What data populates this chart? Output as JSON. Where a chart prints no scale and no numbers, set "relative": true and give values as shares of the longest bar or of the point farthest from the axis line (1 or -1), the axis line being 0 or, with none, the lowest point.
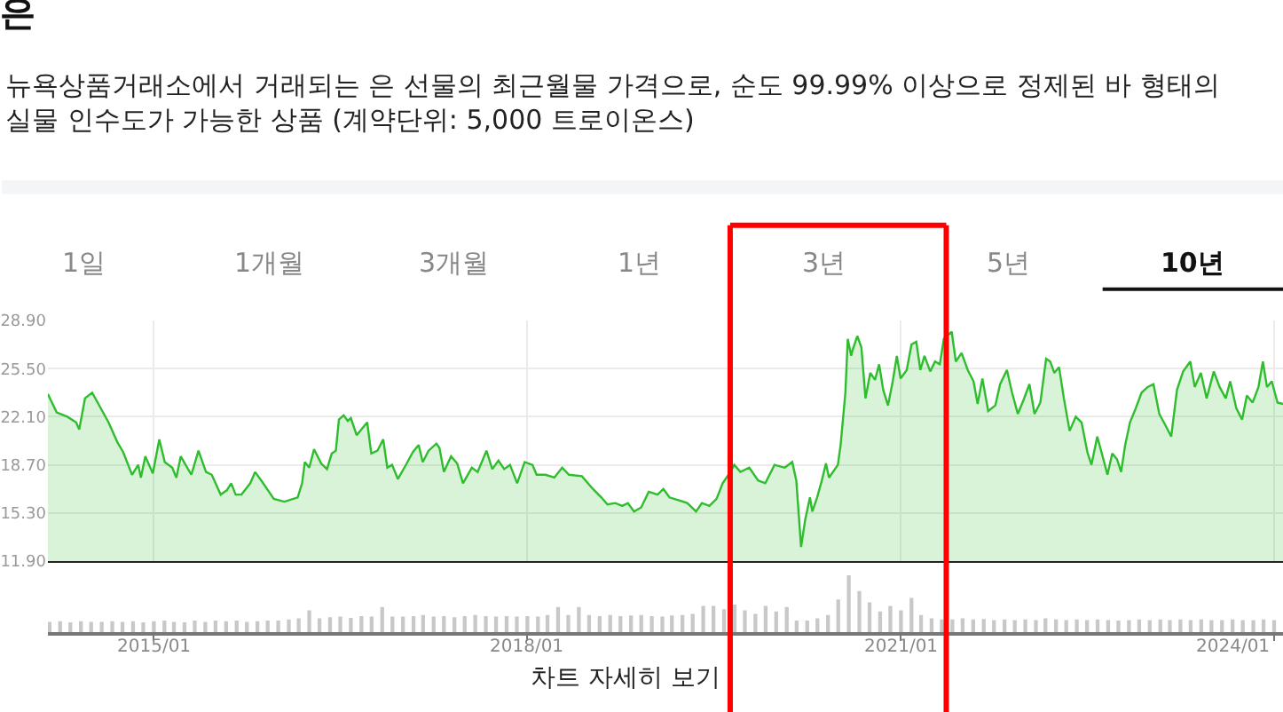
{
  "chart_data": [
    {
      "type": "area",
      "title": "은",
      "subtitle": "뉴욕상품거래소에서 거래되는 은 선물의 최근월물 가격으로, 순도 99.99% 이상으로 정제된 바 형태의 실물 인수도가 가능한 상품 (계약단위: 5,000 트로이온스)",
      "annotations": [
        "1일",
        "1개월",
        "3개월",
        "1년",
        "3년",
        "5년",
        "10년"
      ],
      "x": [
        "2014-02-24",
        "2014-03-22",
        "2014-04-22",
        "2014-05-18",
        "2014-05-27",
        "2014-06-13",
        "2014-07-04",
        "2014-08-21",
        "2014-09-16",
        "2014-10-03",
        "2014-10-29",
        "2014-11-16",
        "2014-11-24",
        "2014-12-07",
        "2014-12-29",
        "2015-01-17",
        "2015-02-02",
        "2015-02-24",
        "2015-03-08",
        "2015-03-21",
        "2015-04-21",
        "2015-05-12",
        "2015-06-03",
        "2015-06-20",
        "2015-07-16",
        "2015-08-03",
        "2015-08-16",
        "2015-08-29",
        "2015-09-15",
        "2015-10-11",
        "2015-10-25",
        "2015-11-15",
        "2015-12-02",
        "2015-12-19",
        "2016-01-19",
        "2016-02-27",
        "2016-03-11",
        "2016-03-19",
        "2016-04-01",
        "2016-04-15",
        "2016-05-06",
        "2016-05-23",
        "2016-06-06",
        "2016-06-18",
        "2016-06-27",
        "2016-07-11",
        "2016-07-23",
        "2016-08-01",
        "2016-08-18",
        "2016-09-01",
        "2016-09-18",
        "2016-09-30",
        "2016-10-18",
        "2016-11-04",
        "2016-11-16",
        "2016-11-30",
        "2016-12-17",
        "2017-01-12",
        "2017-01-30",
        "2017-02-16",
        "2017-02-28",
        "2017-03-17",
        "2017-04-09",
        "2017-04-18",
        "2017-05-01",
        "2017-05-22",
        "2017-06-09",
        "2017-06-26",
        "2017-07-22",
        "2017-08-08",
        "2017-09-03",
        "2017-09-20",
        "2017-10-08",
        "2017-10-25",
        "2017-11-11",
        "2017-12-02",
        "2017-12-24",
        "2018-01-16",
        "2018-01-28",
        "2018-02-23",
        "2018-03-21",
        "2018-04-13",
        "2018-05-03",
        "2018-06-10",
        "2018-07-12",
        "2018-08-06",
        "2018-08-24",
        "2018-09-16",
        "2018-10-06",
        "2018-10-23",
        "2018-11-10",
        "2018-12-01",
        "2018-12-23",
        "2019-01-18",
        "2019-02-04",
        "2019-02-22",
        "2019-03-20",
        "2019-04-15",
        "2019-05-11",
        "2019-05-28",
        "2019-06-19",
        "2019-07-10",
        "2019-07-28",
        "2019-08-14",
        "2019-08-31",
        "2019-09-18",
        "2019-10-14",
        "2019-11-09",
        "2019-11-30",
        "2019-12-27",
        "2020-01-26",
        "2020-02-17",
        "2020-02-29",
        "2020-03-14",
        "2020-03-26",
        "2020-04-09",
        "2020-04-16",
        "2020-04-30",
        "2020-05-14",
        "2020-05-26",
        "2020-06-04",
        "2020-06-30",
        "2020-07-08",
        "2020-07-22",
        "2020-07-29",
        "2020-08-08",
        "2020-08-12",
        "2020-08-26",
        "2020-09-07",
        "2020-09-19",
        "2020-10-03",
        "2020-10-17",
        "2020-10-29",
        "2020-11-10",
        "2020-11-24",
        "2020-12-08",
        "2020-12-20",
        "2020-12-31",
        "2021-01-18",
        "2021-02-01",
        "2021-02-15",
        "2021-02-27",
        "2021-03-11",
        "2021-03-28",
        "2021-04-11",
        "2021-04-25",
        "2021-05-07",
        "2021-05-30",
        "2021-06-11",
        "2021-06-28",
        "2021-07-16",
        "2021-08-02",
        "2021-08-14",
        "2021-08-28",
        "2021-09-14",
        "2021-10-05",
        "2021-10-19",
        "2021-11-08",
        "2021-11-23",
        "2021-12-10",
        "2021-12-27",
        "2022-01-13",
        "2022-01-28",
        "2022-02-14",
        "2022-03-03",
        "2022-03-15",
        "2022-03-27",
        "2022-04-10",
        "2022-04-24",
        "2022-05-11",
        "2022-05-29",
        "2022-06-15",
        "2022-07-02",
        "2022-07-14",
        "2022-07-31",
        "2022-08-18",
        "2022-08-30",
        "2022-09-13",
        "2022-09-27",
        "2022-10-09",
        "2022-10-21",
        "2022-11-04",
        "2022-11-21",
        "2022-12-08",
        "2022-12-26",
        "2023-01-12",
        "2023-01-29",
        "2023-02-16",
        "2023-03-05",
        "2023-03-22",
        "2023-04-09",
        "2023-04-30",
        "2023-05-13",
        "2023-05-31",
        "2023-06-17",
        "2023-07-08",
        "2023-07-25",
        "2023-08-12",
        "2023-08-25",
        "2023-09-12",
        "2023-09-29",
        "2023-10-13",
        "2023-10-30",
        "2023-11-16",
        "2023-11-29",
        "2023-12-11",
        "2023-12-25",
        "2024-01-11",
        "2024-01-27"
      ],
      "series": [
        {
          "color": "#2dbd2d",
          "values": [
            23.7,
            22.4,
            22.1,
            21.7,
            21.2,
            23.4,
            23.8,
            21.7,
            20.3,
            19.6,
            18.0,
            18.7,
            17.8,
            19.3,
            18.1,
            20.5,
            18.9,
            18.5,
            17.8,
            19.3,
            18.0,
            19.7,
            18.2,
            18.0,
            16.6,
            16.9,
            17.4,
            16.6,
            16.6,
            17.4,
            18.2,
            17.5,
            16.9,
            16.3,
            16.1,
            16.4,
            17.4,
            18.9,
            18.5,
            19.8,
            18.8,
            18.4,
            19.5,
            19.7,
            21.9,
            22.2,
            21.8,
            22.0,
            20.8,
            21.2,
            21.7,
            19.5,
            19.7,
            20.5,
            18.5,
            18.7,
            17.7,
            18.8,
            19.6,
            20.1,
            18.9,
            19.7,
            20.2,
            19.9,
            18.2,
            19.3,
            18.8,
            17.4,
            18.5,
            18.2,
            19.7,
            18.4,
            19.0,
            18.4,
            18.7,
            17.4,
            18.9,
            18.7,
            18.0,
            18.0,
            17.8,
            18.5,
            18.0,
            17.9,
            17.0,
            16.4,
            15.9,
            16.0,
            15.8,
            16.0,
            15.4,
            15.7,
            16.8,
            16.6,
            17.0,
            16.4,
            16.2,
            16.0,
            15.4,
            16.0,
            15.8,
            16.3,
            17.4,
            18.0,
            18.7,
            18.2,
            18.5,
            17.6,
            17.4,
            18.7,
            18.5,
            18.9,
            17.6,
            12.9,
            14.8,
            16.4,
            15.4,
            16.4,
            17.6,
            18.8,
            17.8,
            18.7,
            20.1,
            23.8,
            27.6,
            26.4,
            26.8,
            27.8,
            27.0,
            23.4,
            25.2,
            24.7,
            25.8,
            24.0,
            22.9,
            24.6,
            26.4,
            24.8,
            25.4,
            27.2,
            27.4,
            25.4,
            26.4,
            25.3,
            26.0,
            25.8,
            27.6,
            28.1,
            26.0,
            26.6,
            25.4,
            24.6,
            23.0,
            24.8,
            22.5,
            22.9,
            24.4,
            25.4,
            23.8,
            22.3,
            23.3,
            24.4,
            22.3,
            23.1,
            26.2,
            26.0,
            25.2,
            25.6,
            23.4,
            21.1,
            22.1,
            21.7,
            19.6,
            18.7,
            20.7,
            19.1,
            18.0,
            19.5,
            19.1,
            18.2,
            20.1,
            21.7,
            22.7,
            23.8,
            24.2,
            24.4,
            22.3,
            21.5,
            20.7,
            24.0,
            25.3,
            26.0,
            24.2,
            25.2,
            23.4,
            25.3,
            24.2,
            23.4,
            24.6,
            22.7,
            21.9,
            23.6,
            23.1,
            24.2,
            26.0,
            24.2,
            24.6,
            23.1,
            23.0
          ]
        }
      ],
      "xlim": [
        "2014-02-24",
        "2024-01-27"
      ],
      "xticks": [
        {
          "value": "2015-01",
          "label": null
        },
        {
          "value": "2018-01",
          "label": null
        },
        {
          "value": "2021-01",
          "label": null
        },
        {
          "value": "2024-01",
          "label": null
        }
      ],
      "ylim": [
        11.9,
        28.9
      ],
      "yticks": [
        {
          "value": 11.9,
          "label": "11.90"
        },
        {
          "value": 15.3,
          "label": "15.30"
        },
        {
          "value": 18.7,
          "label": "18.70"
        },
        {
          "value": 22.1,
          "label": "22.10"
        },
        {
          "value": 25.5,
          "label": "25.50"
        },
        {
          "value": 28.9,
          "label": "28.90"
        }
      ],
      "grid": true,
      "tick_labels": "y",
      "ref_lines": [
        {
          "axis": "x",
          "value": "2019-08-19",
          "color": "#ff0000"
        },
        {
          "axis": "x",
          "value": "2021-05-14",
          "color": "#ff0000"
        }
      ]
    },
    {
      "type": "bar",
      "relative": true,
      "color": "#c8c8c8",
      "x": [
        "2014-03",
        "2014-04",
        "2014-05",
        "2014-06",
        "2014-07",
        "2014-08",
        "2014-09",
        "2014-10",
        "2014-11",
        "2014-12",
        "2015-01",
        "2015-02",
        "2015-03",
        "2015-04",
        "2015-05",
        "2015-06",
        "2015-07",
        "2015-08",
        "2015-09",
        "2015-10",
        "2015-11",
        "2015-12",
        "2016-01",
        "2016-02",
        "2016-03",
        "2016-04",
        "2016-05",
        "2016-06",
        "2016-07",
        "2016-08",
        "2016-09",
        "2016-10",
        "2016-11",
        "2016-12",
        "2017-01",
        "2017-02",
        "2017-03",
        "2017-04",
        "2017-05",
        "2017-06",
        "2017-07",
        "2017-08",
        "2017-09",
        "2017-10",
        "2017-11",
        "2017-12",
        "2018-01",
        "2018-02",
        "2018-03",
        "2018-04",
        "2018-05",
        "2018-06",
        "2018-07",
        "2018-08",
        "2018-09",
        "2018-10",
        "2018-11",
        "2018-12",
        "2019-01",
        "2019-02",
        "2019-03",
        "2019-04",
        "2019-05",
        "2019-06",
        "2019-07",
        "2019-08",
        "2019-09",
        "2019-10",
        "2019-11",
        "2019-12",
        "2020-01",
        "2020-02",
        "2020-03",
        "2020-04",
        "2020-05",
        "2020-06",
        "2020-07",
        "2020-08",
        "2020-09",
        "2020-10",
        "2020-11",
        "2020-12",
        "2021-01",
        "2021-02",
        "2021-03",
        "2021-04",
        "2021-05",
        "2021-06",
        "2021-07",
        "2021-08",
        "2021-09",
        "2021-10",
        "2021-11",
        "2021-12",
        "2022-01",
        "2022-02",
        "2022-03",
        "2022-04",
        "2022-05",
        "2022-06",
        "2022-07",
        "2022-08",
        "2022-09",
        "2022-10",
        "2022-11",
        "2022-12",
        "2023-01",
        "2023-02",
        "2023-03",
        "2023-04",
        "2023-05",
        "2023-06",
        "2023-07",
        "2023-08",
        "2023-09",
        "2023-10",
        "2023-11",
        "2023-12",
        "2024-01"
      ],
      "values": [
        0.18,
        0.19,
        0.17,
        0.19,
        0.18,
        0.18,
        0.19,
        0.18,
        0.19,
        0.17,
        0.19,
        0.2,
        0.18,
        0.17,
        0.2,
        0.18,
        0.2,
        0.19,
        0.2,
        0.18,
        0.19,
        0.2,
        0.2,
        0.22,
        0.24,
        0.38,
        0.24,
        0.26,
        0.27,
        0.25,
        0.28,
        0.27,
        0.44,
        0.27,
        0.27,
        0.28,
        0.3,
        0.27,
        0.28,
        0.26,
        0.28,
        0.3,
        0.28,
        0.27,
        0.28,
        0.27,
        0.28,
        0.27,
        0.3,
        0.44,
        0.3,
        0.44,
        0.3,
        0.28,
        0.3,
        0.28,
        0.29,
        0.3,
        0.28,
        0.27,
        0.29,
        0.3,
        0.32,
        0.46,
        0.46,
        0.4,
        0.48,
        0.38,
        0.32,
        0.46,
        0.36,
        0.44,
        0.2,
        0.2,
        0.24,
        0.3,
        0.57,
        1.0,
        0.72,
        0.52,
        0.36,
        0.46,
        0.38,
        0.6,
        0.3,
        0.24,
        0.22,
        0.22,
        0.24,
        0.22,
        0.23,
        0.21,
        0.22,
        0.21,
        0.22,
        0.21,
        0.24,
        0.22,
        0.21,
        0.22,
        0.21,
        0.22,
        0.21,
        0.2,
        0.21,
        0.22,
        0.21,
        0.22,
        0.21,
        0.22,
        0.21,
        0.22,
        0.21,
        0.21,
        0.22,
        0.21,
        0.21,
        0.22,
        0.21
      ],
      "xlim": [
        "2014-02-24",
        "2024-01-27"
      ],
      "xticks": [
        {
          "value": "2015-01",
          "label": "2015/01"
        },
        {
          "value": "2018-01",
          "label": "2018/01"
        },
        {
          "value": "2021-01",
          "label": "2021/01"
        },
        {
          "value": "2024-01",
          "label": "2024/01"
        }
      ],
      "tick_labels": "x",
      "annotations": [
        "차트 자세히 보기"
      ]
    }
  ]
}
